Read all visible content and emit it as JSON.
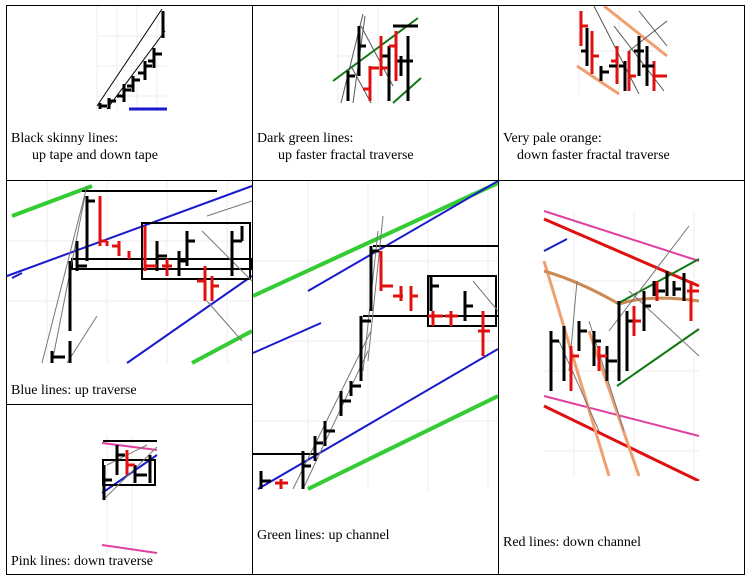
{
  "panels": {
    "black": {
      "line1": "Black skinny lines:",
      "line2": "up tape and down tape"
    },
    "darkgreen": {
      "line1": "Dark green lines:",
      "line2": "up faster fractal traverse"
    },
    "orange": {
      "line1": "Very pale orange:",
      "line2": "down faster fractal traverse"
    },
    "blue": {
      "line1": "Blue lines:  up traverse"
    },
    "green": {
      "line1": "Green lines: up channel"
    },
    "red": {
      "line1": "Red lines: down channel"
    },
    "pink": {
      "line1": "Pink lines: down traverse"
    }
  },
  "colors": {
    "bar_up": "#000000",
    "bar_down": "#e01010",
    "blue": "#1a1acc",
    "green": "#33cc33",
    "darkgreen": "#117711",
    "orange": "#f0a070",
    "brown": "#cc8855",
    "pink": "#e040a0",
    "red": "#e01010",
    "thin": "#777777"
  }
}
